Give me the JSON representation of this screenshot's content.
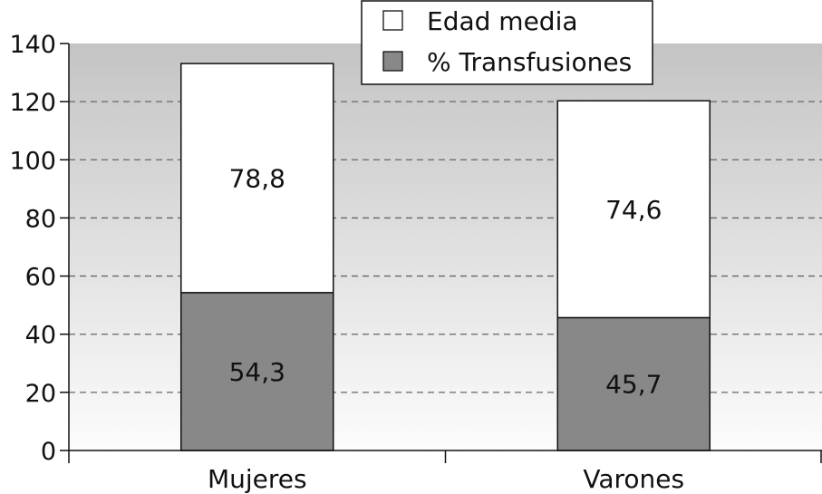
{
  "chart_data": {
    "type": "bar",
    "stacked": true,
    "categories": [
      "Mujeres",
      "Varones"
    ],
    "series": [
      {
        "name": "% Transfusiones",
        "values": [
          54.3,
          45.7
        ],
        "labels": [
          "54,3",
          "45,7"
        ],
        "color": "#888888"
      },
      {
        "name": "Edad media",
        "values": [
          78.8,
          74.6
        ],
        "labels": [
          "78,8",
          "74,6"
        ],
        "color": "#ffffff"
      }
    ],
    "ylim": [
      0,
      140
    ],
    "yticks": [
      0,
      20,
      40,
      60,
      80,
      100,
      120,
      140
    ],
    "grid": true,
    "legend_position": "top-right",
    "legend_order": [
      "Edad media",
      "% Transfusiones"
    ]
  }
}
